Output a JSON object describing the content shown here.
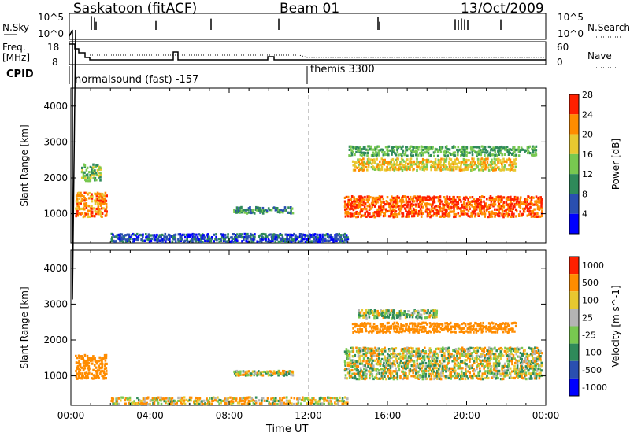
{
  "header": {
    "station": "Saskatoon (fitACF)",
    "beam": "Beam 01",
    "date": "13/Oct/2009"
  },
  "strip1": {
    "left_label": "N.Sky",
    "right_label": "N.Search",
    "tick_top": "10^5",
    "tick_bottom": "10^0"
  },
  "strip2": {
    "left_label_1": "Freq.",
    "left_label_2": "[MHz]",
    "left_tick_top": "18",
    "left_tick_bottom": "8",
    "right_tick_top": "60",
    "right_tick_bottom": "0",
    "right_label": "Nave"
  },
  "cpid": {
    "label": "CPID",
    "prog1": "normalsound (fast) -157",
    "prog2": "themis 3300"
  },
  "colors": {
    "scatter_ground": "#b4b4b4",
    "panel_frame": "#000000",
    "divider_line": "#c8c8c8"
  },
  "chart_data": [
    {
      "type": "heatmap",
      "title": "Power",
      "xlabel": "Time UT",
      "ylabel": "Slant Range [km]",
      "x_ticks": [
        "00:00",
        "04:00",
        "08:00",
        "12:00",
        "16:00",
        "20:00",
        "00:00"
      ],
      "x_range_hours": [
        0,
        24
      ],
      "y_ticks": [
        "1000",
        "2000",
        "3000",
        "4000"
      ],
      "y_range": [
        180,
        4500
      ],
      "colorbar": {
        "label": "Power [dB]",
        "ticks": [
          "4",
          "8",
          "12",
          "16",
          "20",
          "24",
          "28"
        ],
        "colors": [
          "#0000ff",
          "#2a4fb0",
          "#2f8a5a",
          "#78c850",
          "#e8c830",
          "#ff8c00",
          "#ff2000"
        ]
      },
      "regions": [
        {
          "t0": 0.2,
          "t1": 1.8,
          "r0": 900,
          "r1": 1600,
          "level": 24
        },
        {
          "t0": 0.5,
          "t1": 1.5,
          "r0": 1900,
          "r1": 2400,
          "level": 16
        },
        {
          "t0": 8.2,
          "t1": 11.2,
          "r0": 1000,
          "r1": 1200,
          "level": 12
        },
        {
          "t0": 2,
          "t1": 14,
          "r0": 200,
          "r1": 450,
          "level": 8
        },
        {
          "t0": 13.8,
          "t1": 23.8,
          "r0": 900,
          "r1": 1500,
          "level": 26
        },
        {
          "t0": 14.2,
          "t1": 22.5,
          "r0": 2200,
          "r1": 2550,
          "level": 20
        },
        {
          "t0": 14,
          "t1": 23.5,
          "r0": 2600,
          "r1": 2900,
          "level": 14
        }
      ]
    },
    {
      "type": "heatmap",
      "title": "Velocity",
      "xlabel": "Time UT",
      "ylabel": "Slant Range [km]",
      "x_ticks": [
        "00:00",
        "04:00",
        "08:00",
        "12:00",
        "16:00",
        "20:00",
        "00:00"
      ],
      "x_range_hours": [
        0,
        24
      ],
      "y_ticks": [
        "1000",
        "2000",
        "3000",
        "4000"
      ],
      "y_range": [
        180,
        4500
      ],
      "colorbar": {
        "label": "Velocity [m s^-1]",
        "ticks": [
          "1000",
          "500",
          "100",
          "25",
          "-25",
          "-100",
          "-500",
          "-1000"
        ],
        "colors": [
          "#0000ff",
          "#2a4fb0",
          "#2f8a5a",
          "#78c850",
          "#b4b4b4",
          "#e8c830",
          "#ff8c00",
          "#ff2000"
        ]
      },
      "regions": [
        {
          "t0": 0.2,
          "t1": 1.8,
          "r0": 900,
          "r1": 1600,
          "level": -300
        },
        {
          "t0": 8.2,
          "t1": 11.2,
          "r0": 1000,
          "r1": 1150,
          "level": 0
        },
        {
          "t0": 2,
          "t1": 14,
          "r0": 200,
          "r1": 420,
          "level": -60
        },
        {
          "t0": 13.8,
          "t1": 23.8,
          "r0": 900,
          "r1": 1800,
          "level": 0
        },
        {
          "t0": 14.2,
          "t1": 22.5,
          "r0": 2200,
          "r1": 2500,
          "level": -300
        },
        {
          "t0": 14.5,
          "t1": 18.5,
          "r0": 2600,
          "r1": 2850,
          "level": 60
        }
      ]
    }
  ]
}
